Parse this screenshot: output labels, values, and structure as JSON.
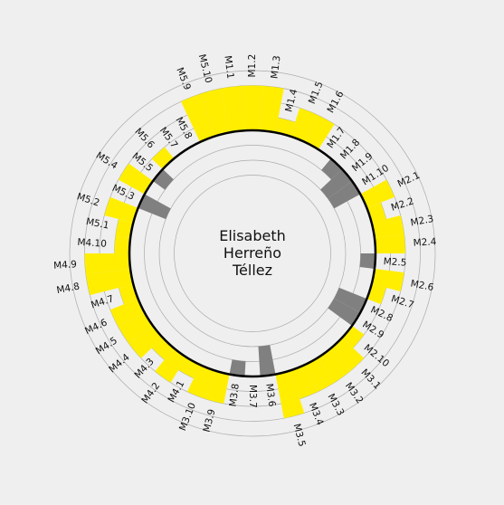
{
  "chart_data": {
    "type": "polar-bar",
    "center_name": [
      "Elisabeth",
      "Herreño",
      "Téllez"
    ],
    "colors": {
      "above": "#ffee00",
      "below": "#808080",
      "boundary": "#000000",
      "grid": "#aaaaaa",
      "background": "#efefef"
    },
    "baseline": 0,
    "rlim": [
      -4,
      4
    ],
    "rings": [
      -3,
      -2,
      -1,
      0,
      1,
      2,
      3,
      4
    ],
    "grid": true,
    "categories": [
      "M1.1",
      "M1.2",
      "M1.3",
      "M1.4",
      "M1.5",
      "M1.6",
      "M1.7",
      "M1.8",
      "M1.9",
      "M1.10",
      "M2.1",
      "M2.2",
      "M2.3",
      "M2.4",
      "M2.5",
      "M2.6",
      "M2.7",
      "M2.8",
      "M2.9",
      "M2.10",
      "M3.1",
      "M3.2",
      "M3.3",
      "M3.4",
      "M3.5",
      "M3.6",
      "M3.7",
      "M3.8",
      "M3.9",
      "M3.10",
      "M4.1",
      "M4.2",
      "M4.3",
      "M4.4",
      "M4.5",
      "M4.6",
      "M4.7",
      "M4.8",
      "M4.9",
      "M4.10",
      "M5.1",
      "M5.2",
      "M5.3",
      "M5.4",
      "M5.5",
      "M5.6",
      "M5.7",
      "M5.8",
      "M5.9",
      "M5.10"
    ],
    "values": [
      3,
      3,
      3,
      1,
      2,
      2,
      0,
      -1,
      -2,
      -2,
      2,
      1,
      2,
      2,
      -1,
      2,
      1,
      -2,
      -2,
      1,
      2,
      2,
      2,
      2,
      3,
      -2,
      0,
      -1,
      2,
      2,
      1,
      2,
      1,
      2,
      2,
      2,
      1,
      3,
      3,
      1,
      1,
      2,
      -2,
      2,
      -1,
      1,
      0,
      0,
      3,
      3
    ]
  }
}
